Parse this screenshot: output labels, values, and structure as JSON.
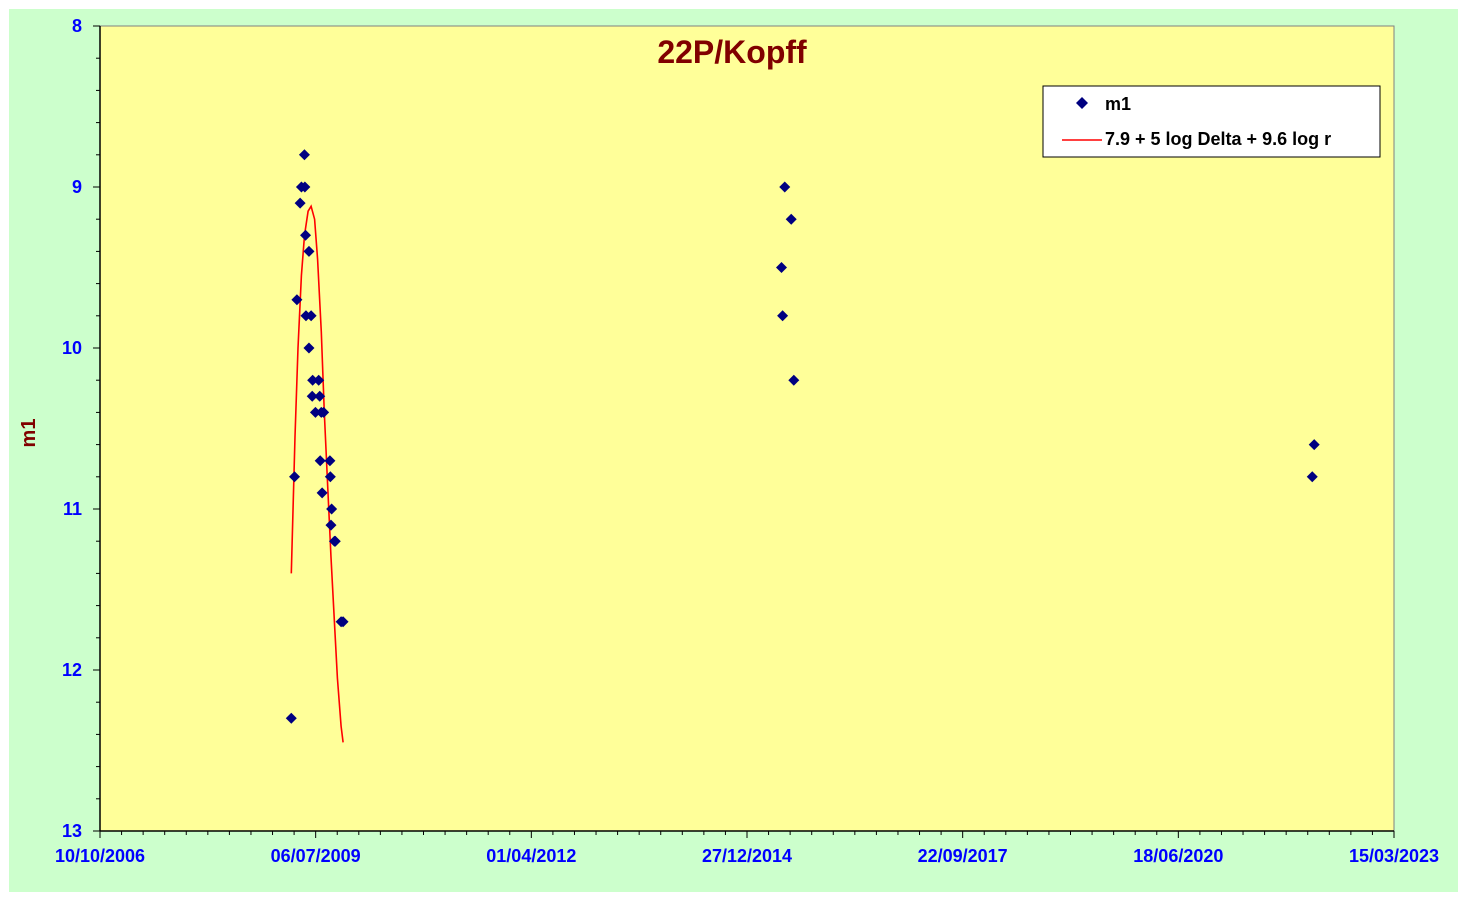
{
  "chart_data": {
    "type": "scatter",
    "title": "22P/Kopff",
    "xlabel": "",
    "ylabel": "m1",
    "y_inverted": true,
    "ylim": [
      8,
      13
    ],
    "yticks": [
      "8",
      "9",
      "10",
      "11",
      "12",
      "13"
    ],
    "xlim": [
      "2006-10-10",
      "2023-03-15"
    ],
    "xticks": [
      "10/10/2006",
      "06/07/2009",
      "01/04/2012",
      "27/12/2014",
      "22/09/2017",
      "18/06/2020",
      "15/03/2023"
    ],
    "grid": false,
    "legend_position": "top-right",
    "colors": {
      "plot_bg": "#ffff99",
      "outer_bg": "#ccffcc",
      "points": "#000080",
      "curve": "#ff0000",
      "tick_text": "#0000ff",
      "title_text": "#800000"
    },
    "series": [
      {
        "name": "m1",
        "kind": "points",
        "points": [
          {
            "x": "2009-03-15",
            "y": 12.3
          },
          {
            "x": "2009-03-30",
            "y": 10.8
          },
          {
            "x": "2009-04-10",
            "y": 9.7
          },
          {
            "x": "2009-04-25",
            "y": 9.1
          },
          {
            "x": "2009-05-01",
            "y": 9.0
          },
          {
            "x": "2009-05-15",
            "y": 8.8
          },
          {
            "x": "2009-05-17",
            "y": 9.0
          },
          {
            "x": "2009-05-20",
            "y": 9.3
          },
          {
            "x": "2009-05-22",
            "y": 9.8
          },
          {
            "x": "2009-06-05",
            "y": 9.4
          },
          {
            "x": "2009-06-05",
            "y": 10.0
          },
          {
            "x": "2009-06-15",
            "y": 9.8
          },
          {
            "x": "2009-06-20",
            "y": 10.3
          },
          {
            "x": "2009-06-22",
            "y": 10.2
          },
          {
            "x": "2009-07-05",
            "y": 10.4
          },
          {
            "x": "2009-07-20",
            "y": 10.2
          },
          {
            "x": "2009-07-25",
            "y": 10.3
          },
          {
            "x": "2009-07-27",
            "y": 10.7
          },
          {
            "x": "2009-08-01",
            "y": 10.4
          },
          {
            "x": "2009-08-05",
            "y": 10.9
          },
          {
            "x": "2009-08-12",
            "y": 10.4
          },
          {
            "x": "2009-09-10",
            "y": 10.7
          },
          {
            "x": "2009-09-12",
            "y": 10.8
          },
          {
            "x": "2009-09-15",
            "y": 11.1
          },
          {
            "x": "2009-09-18",
            "y": 11.0
          },
          {
            "x": "2009-10-01",
            "y": 11.2
          },
          {
            "x": "2009-10-05",
            "y": 11.2
          },
          {
            "x": "2009-11-01",
            "y": 11.7
          },
          {
            "x": "2009-11-10",
            "y": 11.7
          },
          {
            "x": "2015-06-05",
            "y": 9.5
          },
          {
            "x": "2015-06-10",
            "y": 9.8
          },
          {
            "x": "2015-06-20",
            "y": 9.0
          },
          {
            "x": "2015-07-20",
            "y": 9.2
          },
          {
            "x": "2015-08-01",
            "y": 10.2
          },
          {
            "x": "2022-03-01",
            "y": 10.8
          },
          {
            "x": "2022-03-10",
            "y": 10.6
          }
        ]
      },
      {
        "name": "7.9 + 5 log Delta + 9.6 log r",
        "kind": "line",
        "points": [
          {
            "x": "2009-03-15",
            "y": 11.4
          },
          {
            "x": "2009-04-01",
            "y": 10.55
          },
          {
            "x": "2009-04-15",
            "y": 10.0
          },
          {
            "x": "2009-05-01",
            "y": 9.55
          },
          {
            "x": "2009-05-15",
            "y": 9.3
          },
          {
            "x": "2009-06-01",
            "y": 9.15
          },
          {
            "x": "2009-06-15",
            "y": 9.12
          },
          {
            "x": "2009-07-01",
            "y": 9.2
          },
          {
            "x": "2009-07-15",
            "y": 9.45
          },
          {
            "x": "2009-08-01",
            "y": 9.9
          },
          {
            "x": "2009-08-15",
            "y": 10.4
          },
          {
            "x": "2009-09-01",
            "y": 10.9
          },
          {
            "x": "2009-09-15",
            "y": 11.3
          },
          {
            "x": "2009-10-01",
            "y": 11.7
          },
          {
            "x": "2009-10-15",
            "y": 12.05
          },
          {
            "x": "2009-11-01",
            "y": 12.35
          },
          {
            "x": "2009-11-10",
            "y": 12.45
          }
        ]
      }
    ]
  }
}
